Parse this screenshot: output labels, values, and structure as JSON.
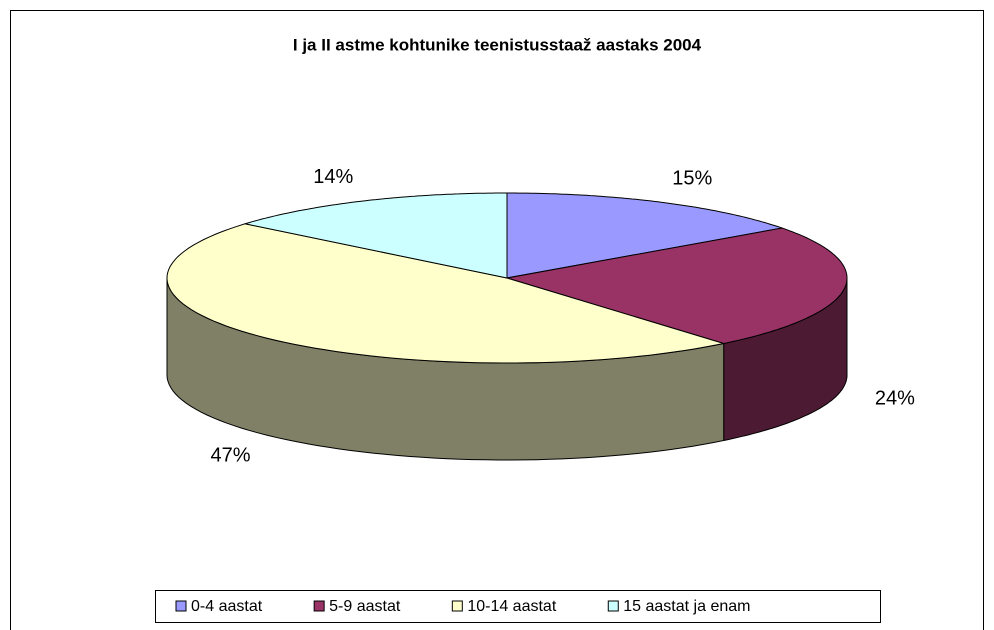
{
  "chart_data": {
    "type": "pie3d",
    "title": "I ja II astme kohtunike teenistusstaaž aastaks 2004",
    "categories": [
      "0-4 aastat",
      "5-9 aastat",
      "10-14 aastat",
      "15 aastat ja enam"
    ],
    "values": [
      15,
      24,
      47,
      14
    ],
    "value_labels": [
      "15%",
      "24%",
      "47%",
      "14%"
    ],
    "colors": [
      "#9999ff",
      "#993366",
      "#ffffcc",
      "#ccffff"
    ],
    "legend": "bottom"
  }
}
